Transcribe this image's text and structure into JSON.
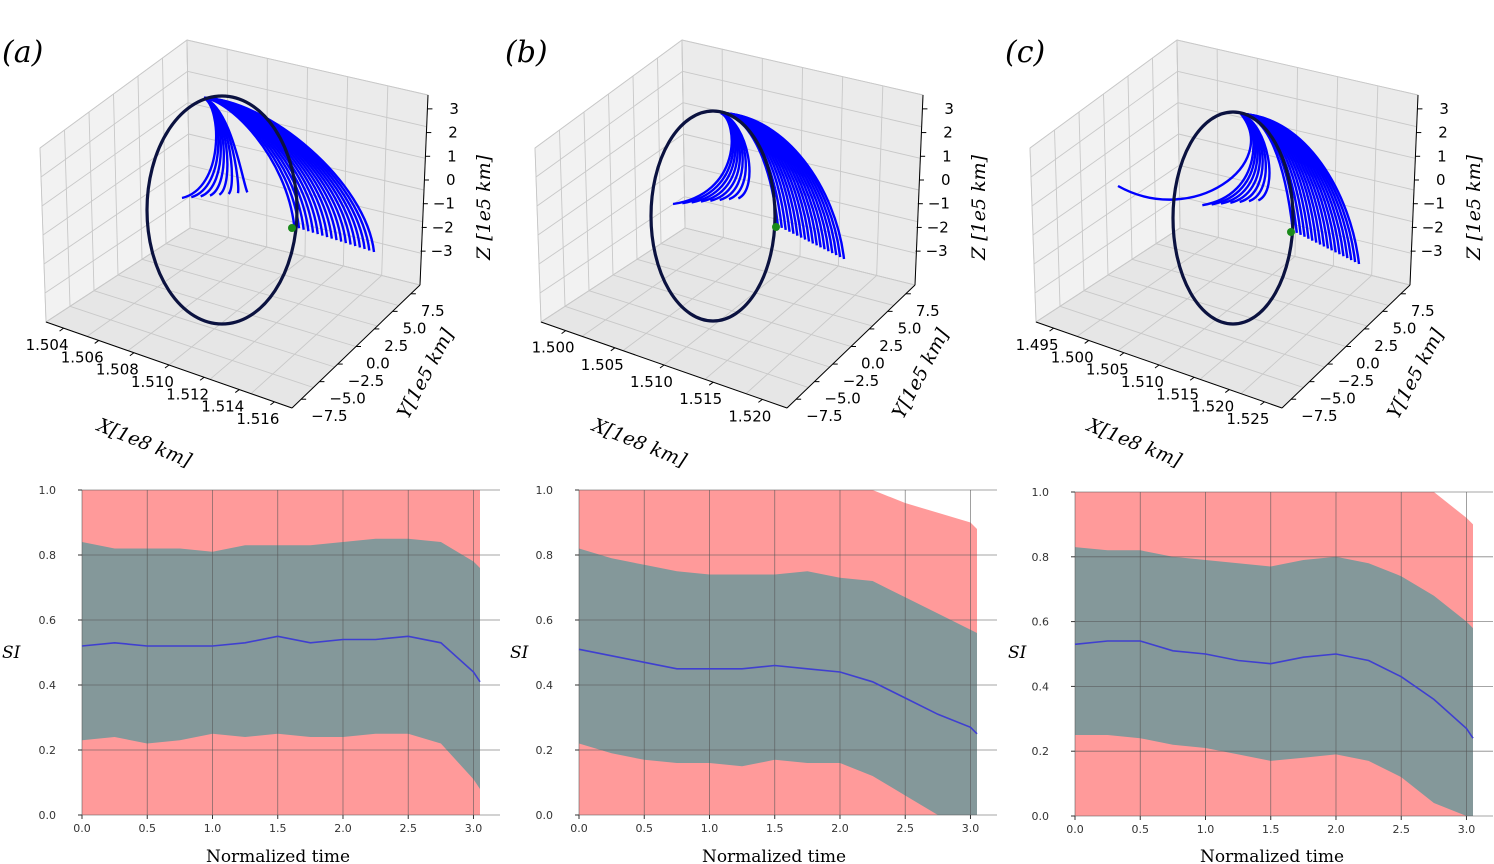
{
  "chart_data": [
    {
      "type": "line3d",
      "panel_label": "(a)",
      "xlabel": "X[1e8 km]",
      "ylabel": "Y[1e5 km]",
      "zlabel": "Z [1e5 km]",
      "x_ticks": [
        "1.504",
        "1.506",
        "1.508",
        "1.510",
        "1.512",
        "1.514",
        "1.516"
      ],
      "y_ticks": [
        "−7.5",
        "−5.0",
        "−2.5",
        "0.0",
        "2.5",
        "5.0",
        "7.5"
      ],
      "z_ticks": [
        "−3",
        "−2",
        "−1",
        "0",
        "1",
        "2",
        "3"
      ],
      "series": [
        {
          "name": "reference orbit",
          "color": "#0b1240"
        },
        {
          "name": "perturbed trajectories",
          "color": "#0000ff"
        },
        {
          "name": "start point",
          "color": "#1a8a1a"
        }
      ]
    },
    {
      "type": "line3d",
      "panel_label": "(b)",
      "xlabel": "X[1e8 km]",
      "ylabel": "Y[1e5 km]",
      "zlabel": "Z [1e5 km]",
      "x_ticks": [
        "1.500",
        "1.505",
        "1.510",
        "1.515",
        "1.520"
      ],
      "y_ticks": [
        "−7.5",
        "−5.0",
        "−2.5",
        "0.0",
        "2.5",
        "5.0",
        "7.5"
      ],
      "z_ticks": [
        "−3",
        "−2",
        "−1",
        "0",
        "1",
        "2",
        "3"
      ],
      "series": [
        {
          "name": "reference orbit",
          "color": "#0b1240"
        },
        {
          "name": "perturbed trajectories",
          "color": "#0000ff"
        },
        {
          "name": "start point",
          "color": "#1a8a1a"
        }
      ]
    },
    {
      "type": "line3d",
      "panel_label": "(c)",
      "xlabel": "X[1e8 km]",
      "ylabel": "Y[1e5 km]",
      "zlabel": "Z [1e5 km]",
      "x_ticks": [
        "1.495",
        "1.500",
        "1.505",
        "1.510",
        "1.515",
        "1.520",
        "1.525"
      ],
      "y_ticks": [
        "−7.5",
        "−5.0",
        "−2.5",
        "0.0",
        "2.5",
        "5.0",
        "7.5"
      ],
      "z_ticks": [
        "−3",
        "−2",
        "−1",
        "0",
        "1",
        "2",
        "3"
      ],
      "series": [
        {
          "name": "reference orbit",
          "color": "#0b1240"
        },
        {
          "name": "perturbed trajectories",
          "color": "#0000ff"
        },
        {
          "name": "start point",
          "color": "#1a8a1a"
        }
      ]
    },
    {
      "type": "area",
      "xlabel": "Normalized time",
      "ylabel": "SI",
      "xlim": [
        0.0,
        3.05
      ],
      "ylim": [
        0.0,
        1.0
      ],
      "x_ticks": [
        "0.0",
        "0.5",
        "1.0",
        "1.5",
        "2.0",
        "2.5",
        "3.0"
      ],
      "y_ticks": [
        "0.0",
        "0.2",
        "0.4",
        "0.6",
        "0.8",
        "1.0"
      ],
      "grid": true,
      "colors": {
        "max_band": "#ff9a9a",
        "std_band": "#84989a",
        "mean": "#3f3fd0"
      },
      "x": [
        0.0,
        0.25,
        0.5,
        0.75,
        1.0,
        1.25,
        1.5,
        1.75,
        2.0,
        2.25,
        2.5,
        2.75,
        3.0,
        3.05
      ],
      "series": [
        {
          "name": "max",
          "values": [
            1.0,
            1.0,
            1.0,
            1.0,
            1.0,
            1.0,
            1.0,
            1.0,
            1.0,
            1.0,
            1.0,
            1.0,
            1.0,
            1.0
          ]
        },
        {
          "name": "mean + std",
          "values": [
            0.84,
            0.82,
            0.82,
            0.82,
            0.81,
            0.83,
            0.83,
            0.83,
            0.84,
            0.85,
            0.85,
            0.84,
            0.78,
            0.76
          ]
        },
        {
          "name": "mean",
          "values": [
            0.52,
            0.53,
            0.52,
            0.52,
            0.52,
            0.53,
            0.55,
            0.53,
            0.54,
            0.54,
            0.55,
            0.53,
            0.44,
            0.41
          ]
        },
        {
          "name": "mean - std",
          "values": [
            0.23,
            0.24,
            0.22,
            0.23,
            0.25,
            0.24,
            0.25,
            0.24,
            0.24,
            0.25,
            0.25,
            0.22,
            0.11,
            0.08
          ]
        },
        {
          "name": "min",
          "values": [
            0.0,
            0.0,
            0.0,
            0.0,
            0.0,
            0.0,
            0.0,
            0.0,
            0.0,
            0.0,
            0.0,
            0.0,
            0.0,
            0.0
          ]
        }
      ]
    },
    {
      "type": "area",
      "xlabel": "Normalized time",
      "ylabel": "SI",
      "xlim": [
        0.0,
        3.05
      ],
      "ylim": [
        0.0,
        1.0
      ],
      "x_ticks": [
        "0.0",
        "0.5",
        "1.0",
        "1.5",
        "2.0",
        "2.5",
        "3.0"
      ],
      "y_ticks": [
        "0.0",
        "0.2",
        "0.4",
        "0.6",
        "0.8",
        "1.0"
      ],
      "grid": true,
      "colors": {
        "max_band": "#ff9a9a",
        "std_band": "#84989a",
        "mean": "#3f3fd0"
      },
      "x": [
        0.0,
        0.25,
        0.5,
        0.75,
        1.0,
        1.25,
        1.5,
        1.75,
        2.0,
        2.25,
        2.5,
        2.75,
        3.0,
        3.05
      ],
      "series": [
        {
          "name": "max",
          "values": [
            1.0,
            1.0,
            1.0,
            1.0,
            1.0,
            1.0,
            1.0,
            1.0,
            1.0,
            1.0,
            0.96,
            0.93,
            0.9,
            0.88
          ]
        },
        {
          "name": "mean + std",
          "values": [
            0.82,
            0.79,
            0.77,
            0.75,
            0.74,
            0.74,
            0.74,
            0.75,
            0.73,
            0.72,
            0.67,
            0.62,
            0.57,
            0.56
          ]
        },
        {
          "name": "mean",
          "values": [
            0.51,
            0.49,
            0.47,
            0.45,
            0.45,
            0.45,
            0.46,
            0.45,
            0.44,
            0.41,
            0.36,
            0.31,
            0.27,
            0.25
          ]
        },
        {
          "name": "mean - std",
          "values": [
            0.22,
            0.19,
            0.17,
            0.16,
            0.16,
            0.15,
            0.17,
            0.16,
            0.16,
            0.12,
            0.06,
            0.0,
            0.0,
            0.0
          ]
        },
        {
          "name": "min",
          "values": [
            0.0,
            0.0,
            0.0,
            0.0,
            0.0,
            0.0,
            0.0,
            0.0,
            0.0,
            0.0,
            0.0,
            0.0,
            0.0,
            0.0
          ]
        }
      ]
    },
    {
      "type": "area",
      "xlabel": "Normalized time",
      "ylabel": "SI",
      "xlim": [
        0.0,
        3.05
      ],
      "ylim": [
        0.0,
        1.0
      ],
      "x_ticks": [
        "0.0",
        "0.5",
        "1.0",
        "1.5",
        "2.0",
        "2.5",
        "3.0"
      ],
      "y_ticks": [
        "0.0",
        "0.2",
        "0.4",
        "0.6",
        "0.8",
        "1.0"
      ],
      "grid": true,
      "colors": {
        "max_band": "#ff9a9a",
        "std_band": "#84989a",
        "mean": "#3f3fd0"
      },
      "x": [
        0.0,
        0.25,
        0.5,
        0.75,
        1.0,
        1.25,
        1.5,
        1.75,
        2.0,
        2.25,
        2.5,
        2.75,
        3.0,
        3.05
      ],
      "series": [
        {
          "name": "max",
          "values": [
            1.0,
            1.0,
            1.0,
            1.0,
            1.0,
            1.0,
            1.0,
            1.0,
            1.0,
            1.0,
            1.0,
            1.0,
            0.92,
            0.9
          ]
        },
        {
          "name": "mean + std",
          "values": [
            0.83,
            0.82,
            0.82,
            0.8,
            0.79,
            0.78,
            0.77,
            0.79,
            0.8,
            0.78,
            0.74,
            0.68,
            0.6,
            0.58
          ]
        },
        {
          "name": "mean",
          "values": [
            0.53,
            0.54,
            0.54,
            0.51,
            0.5,
            0.48,
            0.47,
            0.49,
            0.5,
            0.48,
            0.43,
            0.36,
            0.27,
            0.24
          ]
        },
        {
          "name": "mean - std",
          "values": [
            0.25,
            0.25,
            0.24,
            0.22,
            0.21,
            0.19,
            0.17,
            0.18,
            0.19,
            0.17,
            0.12,
            0.04,
            0.0,
            0.0
          ]
        },
        {
          "name": "min",
          "values": [
            0.0,
            0.0,
            0.0,
            0.0,
            0.0,
            0.0,
            0.0,
            0.0,
            0.0,
            0.0,
            0.0,
            0.0,
            0.0,
            0.0
          ]
        }
      ]
    }
  ]
}
